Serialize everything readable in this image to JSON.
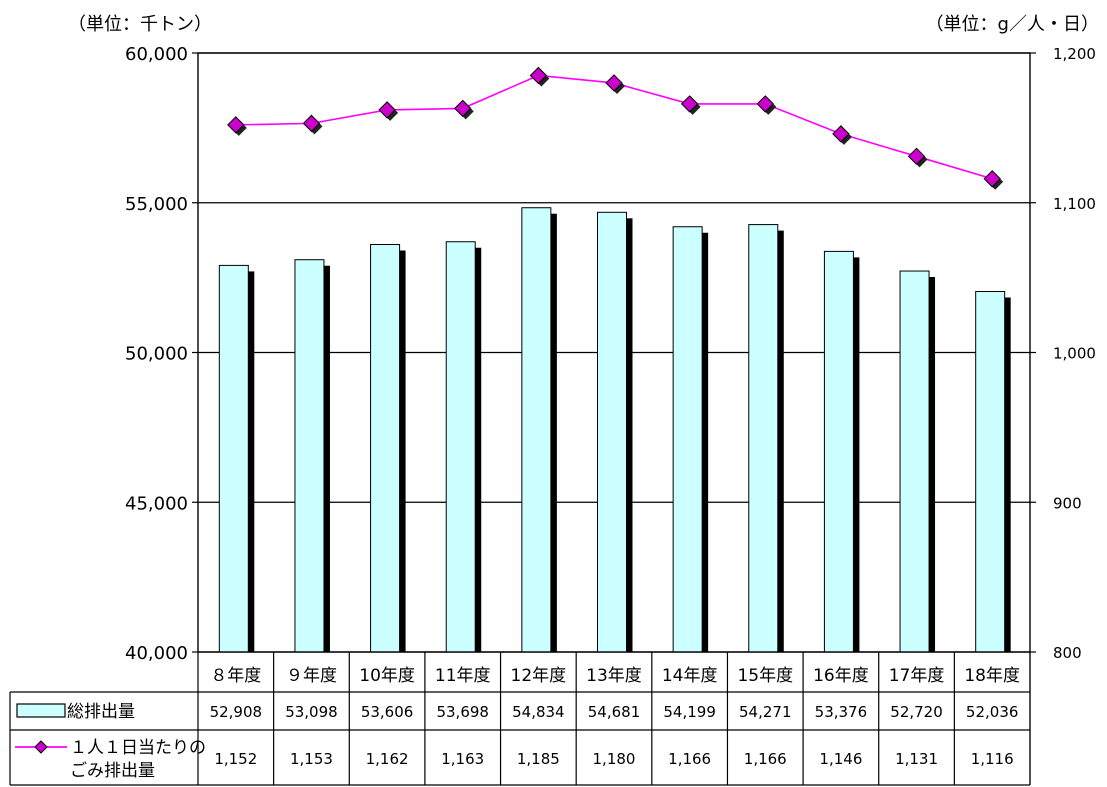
{
  "unit_left": "（単位：千トン）",
  "unit_right": "（単位：g／人・日）",
  "chart_data": {
    "type": "bar",
    "categories": [
      "８年度",
      "９年度",
      "10年度",
      "11年度",
      "12年度",
      "13年度",
      "14年度",
      "15年度",
      "16年度",
      "17年度",
      "18年度"
    ],
    "series": [
      {
        "name": "総排出量",
        "type": "bar",
        "axis": "left",
        "color": "#CCFFFF",
        "values": [
          52908,
          53098,
          53606,
          53698,
          54834,
          54681,
          54199,
          54271,
          53376,
          52720,
          52036
        ],
        "labels": [
          "52,908",
          "53,098",
          "53,606",
          "53,698",
          "54,834",
          "54,681",
          "54,199",
          "54,271",
          "53,376",
          "52,720",
          "52,036"
        ]
      },
      {
        "name": "１人１日当たりのごみ排出量",
        "name_lines": [
          "１人１日当たりの",
          "ごみ排出量"
        ],
        "type": "line",
        "axis": "right",
        "color": "#FF00FF",
        "marker_color": "#CC00CC",
        "values": [
          1152,
          1153,
          1162,
          1163,
          1185,
          1180,
          1166,
          1166,
          1146,
          1131,
          1116
        ],
        "labels": [
          "1,152",
          "1,153",
          "1,162",
          "1,163",
          "1,185",
          "1,180",
          "1,166",
          "1,166",
          "1,146",
          "1,131",
          "1,116"
        ]
      }
    ],
    "ylim_left": [
      40000,
      60000
    ],
    "yticks_left": [
      "40,000",
      "45,000",
      "50,000",
      "55,000",
      "60,000"
    ],
    "ylim_right": [
      800,
      1200
    ],
    "yticks_right": [
      "800",
      "900",
      "1,000",
      "1,100",
      "1,200"
    ],
    "grid": true,
    "legend": "data-table-below"
  }
}
